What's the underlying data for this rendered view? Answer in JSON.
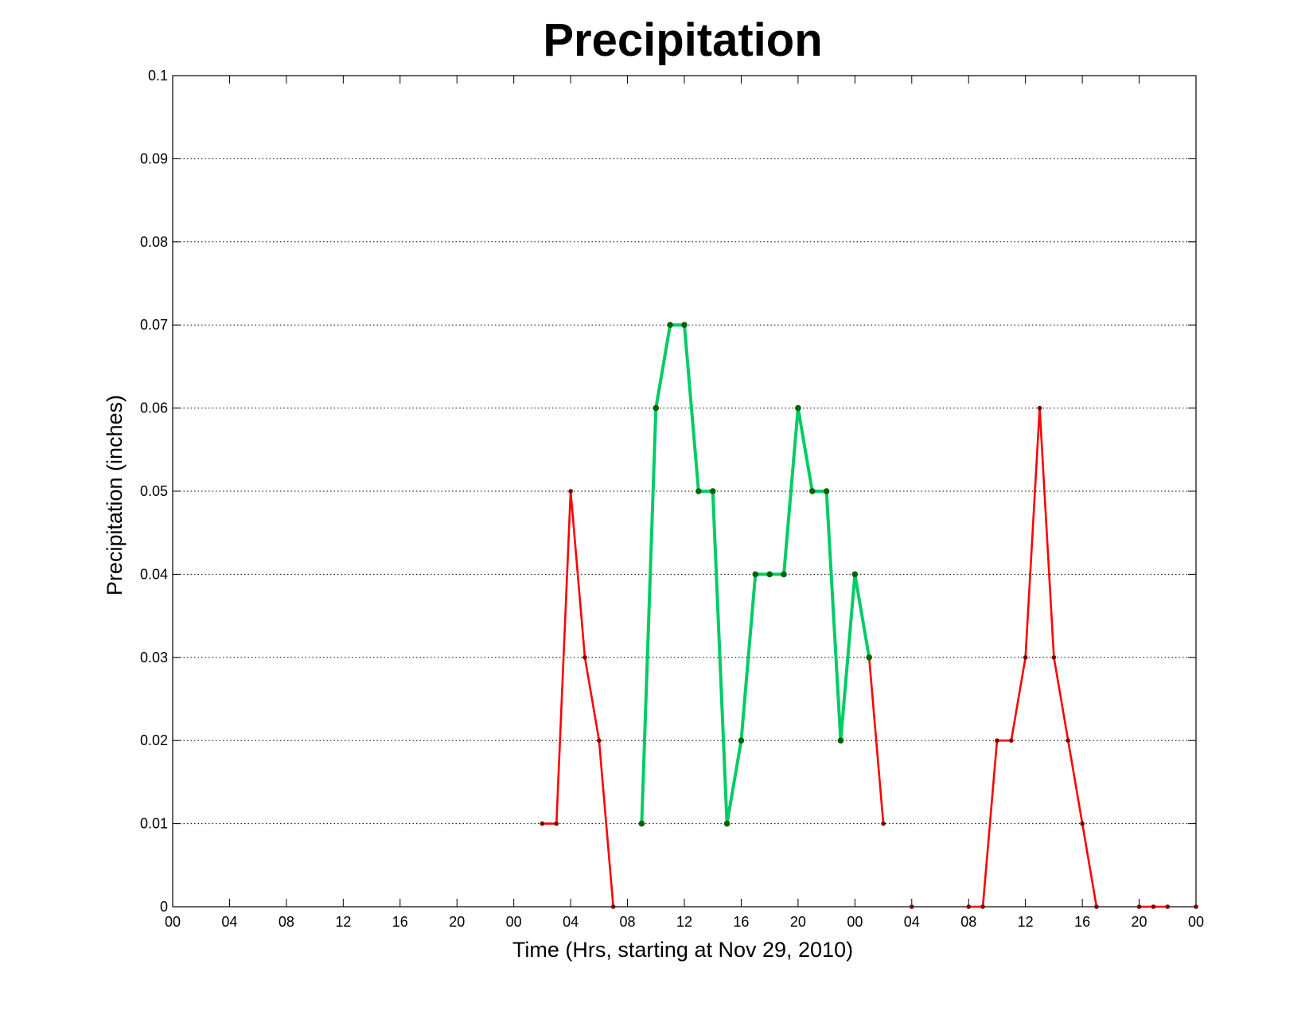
{
  "chart_data": {
    "type": "line",
    "title": "Precipitation",
    "xlabel": "Time (Hrs, starting at Nov 29, 2010)",
    "ylabel": "Precipitation (inches)",
    "x_unit": "hours since Nov 29, 2010 00:00",
    "xlim": [
      0,
      72
    ],
    "ylim": [
      0,
      0.1
    ],
    "x_ticks": [
      0,
      4,
      8,
      12,
      16,
      20,
      24,
      28,
      32,
      36,
      40,
      44,
      48,
      52,
      56,
      60,
      64,
      68,
      72
    ],
    "x_tick_labels": [
      "00",
      "04",
      "08",
      "12",
      "16",
      "20",
      "00",
      "04",
      "08",
      "12",
      "16",
      "20",
      "00",
      "04",
      "08",
      "12",
      "16",
      "20",
      "00"
    ],
    "y_ticks": [
      0,
      0.01,
      0.02,
      0.03,
      0.04,
      0.05,
      0.06,
      0.07,
      0.08,
      0.09,
      0.1
    ],
    "y_tick_labels": [
      "0",
      "0.01",
      "0.02",
      "0.03",
      "0.04",
      "0.05",
      "0.06",
      "0.07",
      "0.08",
      "0.09",
      "0.1"
    ],
    "grid": true,
    "series": [
      {
        "color": "#ff0000",
        "marker_color": "#7a0000",
        "segments": [
          [
            [
              26,
              0.01
            ],
            [
              27,
              0.01
            ],
            [
              28,
              0.05
            ],
            [
              29,
              0.03
            ],
            [
              30,
              0.02
            ],
            [
              31,
              0
            ]
          ],
          [
            [
              49,
              0.03
            ],
            [
              50,
              0.01
            ]
          ],
          [
            [
              56,
              0
            ],
            [
              57,
              0
            ],
            [
              58,
              0.02
            ],
            [
              59,
              0.02
            ],
            [
              60,
              0.03
            ],
            [
              61,
              0.06
            ],
            [
              62,
              0.03
            ],
            [
              63,
              0.02
            ],
            [
              64,
              0.01
            ],
            [
              65,
              0
            ]
          ],
          [
            [
              68,
              0
            ],
            [
              69,
              0
            ],
            [
              70,
              0
            ]
          ]
        ],
        "points": [
          [
            52,
            0
          ],
          [
            72,
            0
          ]
        ]
      },
      {
        "color": "#00cc66",
        "marker_color": "#006400",
        "segments": [
          [
            [
              33,
              0.01
            ],
            [
              34,
              0.06
            ],
            [
              35,
              0.07
            ],
            [
              36,
              0.07
            ],
            [
              37,
              0.05
            ],
            [
              38,
              0.05
            ],
            [
              39,
              0.01
            ],
            [
              40,
              0.02
            ],
            [
              41,
              0.04
            ],
            [
              42,
              0.04
            ],
            [
              43,
              0.04
            ],
            [
              44,
              0.06
            ],
            [
              45,
              0.05
            ],
            [
              46,
              0.05
            ],
            [
              47,
              0.02
            ],
            [
              48,
              0.04
            ],
            [
              49,
              0.03
            ]
          ]
        ],
        "points": []
      }
    ]
  }
}
